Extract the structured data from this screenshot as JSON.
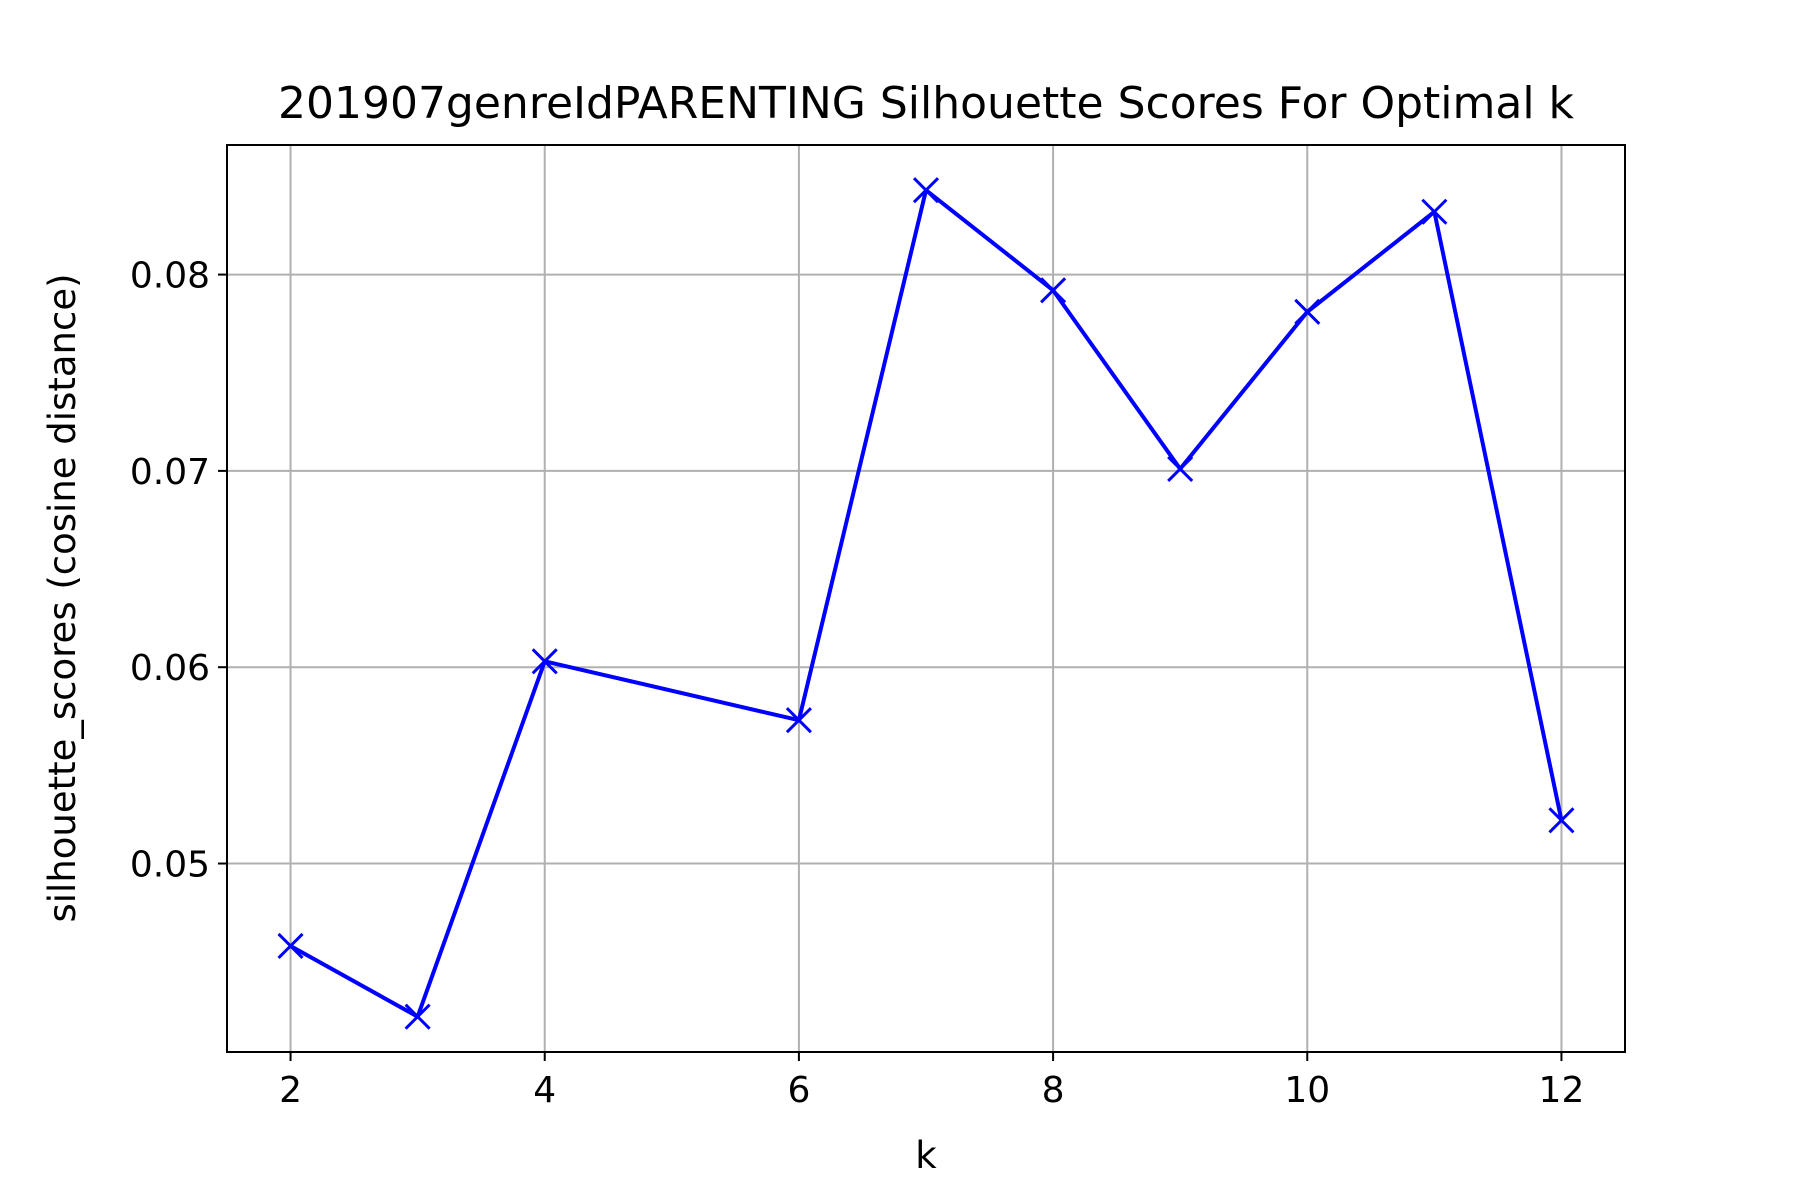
{
  "chart_data": {
    "type": "line",
    "title": "201907genreIdPARENTING Silhouette Scores For Optimal k",
    "xlabel": "k",
    "ylabel": "silhouette_scores (cosine distance)",
    "x": [
      2,
      3,
      4,
      6,
      7,
      8,
      9,
      10,
      11,
      12
    ],
    "series": [
      {
        "values": [
          0.0458,
          0.0422,
          0.0603,
          0.0573,
          0.0843,
          0.0792,
          0.0701,
          0.0781,
          0.0832,
          0.0522
        ],
        "color": "#0000ff",
        "marker": "x"
      }
    ],
    "xticks": [
      2,
      4,
      6,
      8,
      10,
      12
    ],
    "xtick_labels": [
      "2",
      "4",
      "6",
      "8",
      "10",
      "12"
    ],
    "yticks": [
      0.05,
      0.06,
      0.07,
      0.08
    ],
    "ytick_labels": [
      "0.05",
      "0.06",
      "0.07",
      "0.08"
    ],
    "xlim": [
      1.5,
      12.5
    ],
    "ylim": [
      0.0404,
      0.0866
    ],
    "grid": true,
    "legend": "none"
  }
}
